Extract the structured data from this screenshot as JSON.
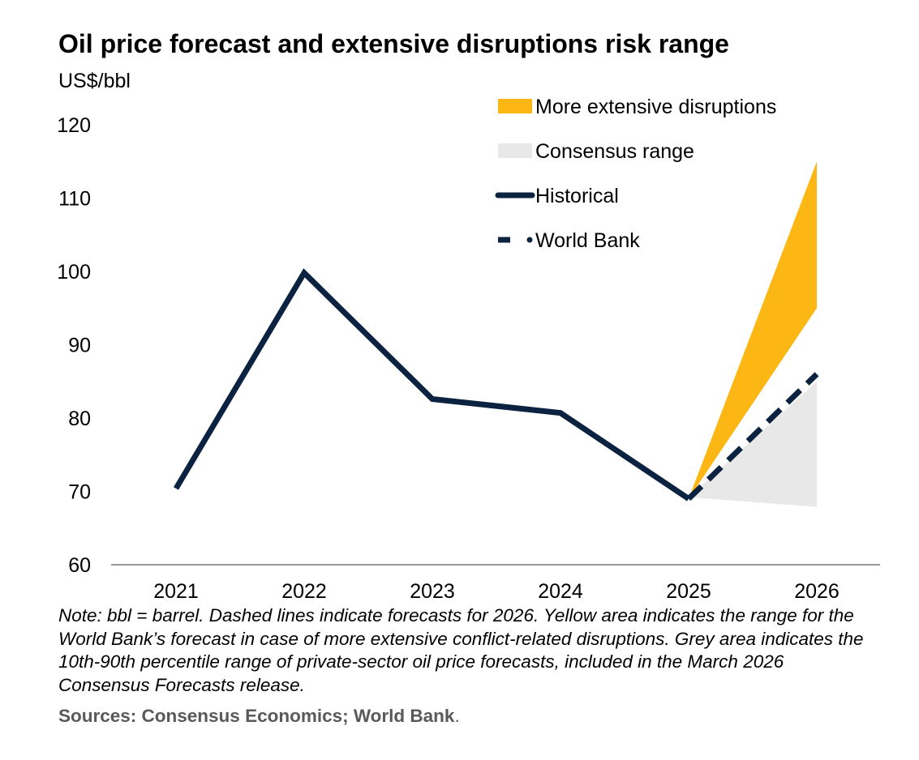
{
  "header": {
    "title": "Oil price forecast and extensive disruptions risk range",
    "unit": "US$/bbl"
  },
  "footer": {
    "note": "Note: bbl = barrel. Dashed lines indicate forecasts for 2026. Yellow area indicates the range for the World Bank’s forecast in case of more extensive  conflict-related disruptions. Grey area indicates the 10th-90th percentile range of private-sector oil price forecasts, included in the March 2026 Consensus Forecasts release.",
    "sources_bold": "Sources: Consensus Economics; World Bank",
    "sources_end": "."
  },
  "colors": {
    "historical": "#0b2341",
    "world_bank": "#0b2341",
    "disruptions": "#fdb714",
    "consensus": "#e8e8e8",
    "axis": "#595959"
  },
  "chart_data": {
    "type": "line",
    "title": "Oil price forecast and extensive disruptions risk range",
    "ylabel": "US$/bbl",
    "categories": [
      "2021",
      "2022",
      "2023",
      "2024",
      "2025",
      "2026"
    ],
    "ylim": [
      60,
      120
    ],
    "yticks": [
      60,
      70,
      80,
      90,
      100,
      110,
      120
    ],
    "grid": false,
    "legend_position": "top-right",
    "series": [
      {
        "name": "Historical",
        "style": "solid",
        "x": [
          "2021",
          "2022",
          "2023",
          "2024",
          "2025"
        ],
        "values": [
          70.4,
          99.8,
          82.6,
          80.7,
          69.0
        ]
      },
      {
        "name": "World Bank",
        "style": "dashed",
        "x": [
          "2025",
          "2026"
        ],
        "values": [
          69.0,
          86.0
        ]
      }
    ],
    "areas": [
      {
        "name": "More extensive disruptions",
        "x": [
          "2025",
          "2026"
        ],
        "low": [
          69.0,
          95.0
        ],
        "high": [
          69.0,
          115.0
        ]
      },
      {
        "name": "Consensus range",
        "x": [
          "2025",
          "2026"
        ],
        "low": [
          69.2,
          67.9
        ],
        "high": [
          69.2,
          85.0
        ]
      }
    ],
    "legend": [
      {
        "label": "More extensive disruptions",
        "kind": "area-yellow"
      },
      {
        "label": "Consensus range",
        "kind": "area-grey"
      },
      {
        "label": "Historical",
        "kind": "line-solid"
      },
      {
        "label": "World Bank",
        "kind": "line-dashed"
      }
    ]
  }
}
